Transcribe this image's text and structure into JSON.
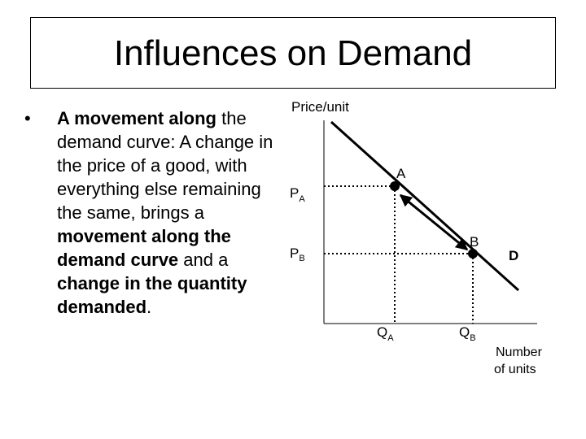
{
  "slide": {
    "title": "Influences on Demand",
    "bullet": {
      "marker": "•",
      "parts": [
        {
          "text": "A movement along",
          "bold": true
        },
        {
          "text": " the demand curve: A change in the price of a good, with everything else remaining the same, brings a ",
          "bold": false
        },
        {
          "text": "movement along the demand curve",
          "bold": true
        },
        {
          "text": " and a ",
          "bold": false
        },
        {
          "text": "change in the quantity demanded",
          "bold": true
        },
        {
          "text": ".",
          "bold": false
        }
      ]
    }
  },
  "diagram": {
    "y_axis_label": "Price/unit",
    "x_axis_label_line1": "Number",
    "x_axis_label_line2": "of units",
    "curve_label": "D",
    "point_a": {
      "label": "A"
    },
    "point_b": {
      "label": "B"
    },
    "price_a": {
      "main": "P",
      "sub": "A"
    },
    "price_b": {
      "main": "P",
      "sub": "B"
    },
    "qty_a": {
      "main": "Q",
      "sub": "A"
    },
    "qty_b": {
      "main": "Q",
      "sub": "B"
    },
    "arrow": "double-headed"
  }
}
